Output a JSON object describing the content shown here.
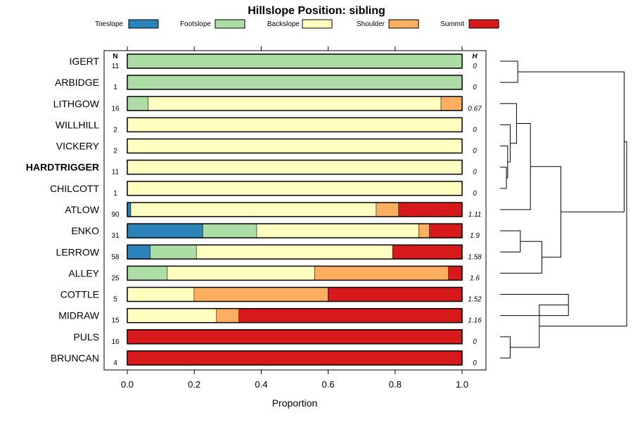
{
  "chart_data": {
    "type": "bar",
    "subtype": "stacked-horizontal-proportion",
    "title": "Hillslope Position: sibling",
    "xlabel": "Proportion",
    "ylabel": "",
    "xlim": [
      0,
      1
    ],
    "xticks": [
      0.0,
      0.2,
      0.4,
      0.6,
      0.8,
      1.0
    ],
    "xtick_labels": [
      "0.0",
      "0.2",
      "0.4",
      "0.6",
      "0.8",
      "1.0"
    ],
    "n_header": "N",
    "h_header": "H",
    "legend": [
      {
        "name": "Toeslope",
        "color": "#2b83ba"
      },
      {
        "name": "Footslope",
        "color": "#abdda4"
      },
      {
        "name": "Backslope",
        "color": "#ffffbf"
      },
      {
        "name": "Shoulder",
        "color": "#fdae61"
      },
      {
        "name": "Summit",
        "color": "#d7191c"
      }
    ],
    "rows": [
      {
        "name": "IGERT",
        "n": "11",
        "h": "0",
        "bold": false,
        "values": [
          0,
          1,
          0,
          0,
          0
        ]
      },
      {
        "name": "ARBIDGE",
        "n": "1",
        "h": "0",
        "bold": false,
        "values": [
          0,
          1,
          0,
          0,
          0
        ]
      },
      {
        "name": "LITHGOW",
        "n": "16",
        "h": "0.67",
        "bold": false,
        "values": [
          0,
          0.0625,
          0.875,
          0.0625,
          0
        ]
      },
      {
        "name": "WILLHILL",
        "n": "2",
        "h": "0",
        "bold": false,
        "values": [
          0,
          0,
          1,
          0,
          0
        ]
      },
      {
        "name": "VICKERY",
        "n": "2",
        "h": "0",
        "bold": false,
        "values": [
          0,
          0,
          1,
          0,
          0
        ]
      },
      {
        "name": "HARDTRIGGER",
        "n": "11",
        "h": "0",
        "bold": true,
        "values": [
          0,
          0,
          1,
          0,
          0
        ]
      },
      {
        "name": "CHILCOTT",
        "n": "1",
        "h": "0",
        "bold": false,
        "values": [
          0,
          0,
          1,
          0,
          0
        ]
      },
      {
        "name": "ATLOW",
        "n": "90",
        "h": "1.11",
        "bold": false,
        "values": [
          0.011,
          0,
          0.733,
          0.067,
          0.189
        ]
      },
      {
        "name": "ENKO",
        "n": "31",
        "h": "1.9",
        "bold": false,
        "values": [
          0.226,
          0.161,
          0.484,
          0.032,
          0.097
        ]
      },
      {
        "name": "LERROW",
        "n": "58",
        "h": "1.58",
        "bold": false,
        "values": [
          0.069,
          0.138,
          0.586,
          0,
          0.207
        ]
      },
      {
        "name": "ALLEY",
        "n": "25",
        "h": "1.6",
        "bold": false,
        "values": [
          0,
          0.12,
          0.44,
          0.4,
          0.04
        ]
      },
      {
        "name": "COTTLE",
        "n": "5",
        "h": "1.52",
        "bold": false,
        "values": [
          0,
          0,
          0.2,
          0.4,
          0.4
        ]
      },
      {
        "name": "MIDRAW",
        "n": "15",
        "h": "1.16",
        "bold": false,
        "values": [
          0,
          0,
          0.267,
          0.067,
          0.667
        ]
      },
      {
        "name": "PULS",
        "n": "16",
        "h": "0",
        "bold": false,
        "values": [
          0,
          0,
          0,
          0,
          1
        ]
      },
      {
        "name": "BRUNCAN",
        "n": "4",
        "h": "0",
        "bold": false,
        "values": [
          0,
          0,
          0,
          0,
          1
        ]
      }
    ],
    "dendrogram": {
      "type": "hierarchical-clustering",
      "leaves": [
        "IGERT",
        "ARBIDGE",
        "LITHGOW",
        "WILLHILL",
        "VICKERY",
        "HARDTRIGGER",
        "CHILCOTT",
        "ATLOW",
        "ENKO",
        "LERROW",
        "ALLEY",
        "COTTLE",
        "MIDRAW",
        "PULS",
        "BRUNCAN"
      ],
      "merges": [
        {
          "a": "IGERT",
          "b": "ARBIDGE",
          "height": 0.14
        },
        {
          "a": "HARDTRIGGER",
          "b": "CHILCOTT",
          "height": 0.05
        },
        {
          "a": "VICKERY",
          "b": "HARDTRIGGER|CHILCOTT",
          "height": 0.06
        },
        {
          "a": "WILLHILL",
          "b": "VICKERY|HARDTRIGGER|CHILCOTT",
          "height": 0.08
        },
        {
          "a": "LITHGOW",
          "b": "WILLHILL|VICKERY|HARDTRIGGER|CHILCOTT",
          "height": 0.13
        },
        {
          "a": "LITHGOW-group",
          "b": "ATLOW",
          "height": 0.24
        },
        {
          "a": "ENKO",
          "b": "LERROW",
          "height": 0.16
        },
        {
          "a": "ENKO|LERROW",
          "b": "ALLEY",
          "height": 0.33
        },
        {
          "a": "ATLOW-group",
          "b": "ENKO-group",
          "height": 0.48
        },
        {
          "a": "IGERT|ARBIDGE",
          "b": "LITHGOW-ENKO-group",
          "height": 0.98
        },
        {
          "a": "COTTLE",
          "b": "MIDRAW",
          "height": 0.54
        },
        {
          "a": "PULS",
          "b": "BRUNCAN",
          "height": 0.08
        },
        {
          "a": "PULS|BRUNCAN",
          "b": "COTTLE|MIDRAW",
          "height": 0.31
        },
        {
          "a": "upper-group",
          "b": "lower-group",
          "height": 1.0
        }
      ]
    }
  }
}
